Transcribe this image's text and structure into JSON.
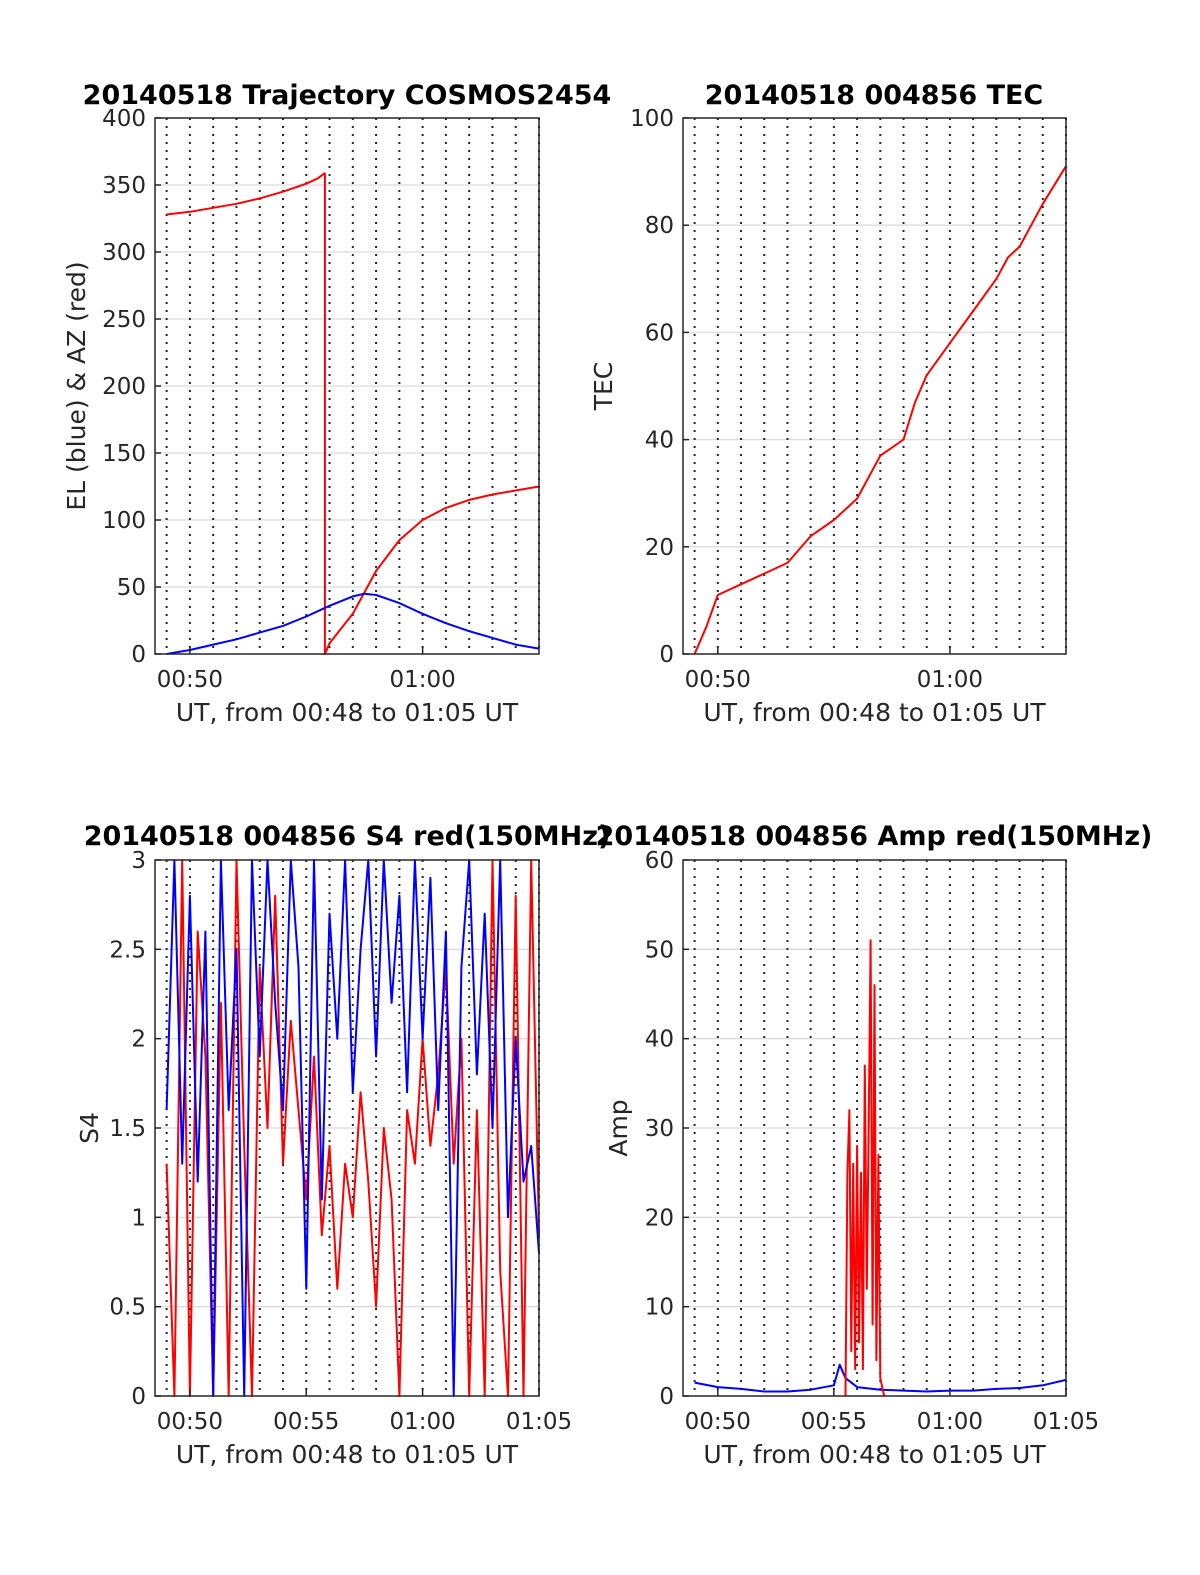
{
  "colors": {
    "red": "#ff0000",
    "blue": "#0000ff"
  },
  "chart_data": [
    {
      "id": "trajectory",
      "type": "line",
      "title": "20140518 Trajectory COSMOS2454",
      "xlabel": "UT, from 00:48 to 01:05 UT",
      "ylabel": "EL (blue) & AZ (red)",
      "xlim": [
        "00:48:30",
        "01:05:00"
      ],
      "ylim": [
        0,
        400
      ],
      "yticks": [
        0,
        50,
        100,
        150,
        200,
        250,
        300,
        350,
        400
      ],
      "xticks": [
        "00:50",
        "01:00"
      ],
      "grid": "on (dotted vertical every minute)",
      "series": [
        {
          "key": "AZ",
          "color": "red",
          "segments": [
            {
              "x": [
                "00:49:00",
                "00:50:00",
                "00:51:00",
                "00:52:00",
                "00:53:00",
                "00:54:00",
                "00:55:00",
                "00:55:30",
                "00:55:48"
              ],
              "y": [
                328,
                330,
                333,
                336,
                340,
                345,
                351,
                355,
                359
              ]
            },
            {
              "x": [
                "00:55:48",
                "00:55:48",
                "00:56:00",
                "00:57:00",
                "00:58:00",
                "00:59:00",
                "01:00:00",
                "01:01:00",
                "01:02:00",
                "01:03:00",
                "01:04:00",
                "01:05:00"
              ],
              "y": [
                359,
                0,
                8,
                30,
                62,
                85,
                100,
                109,
                115,
                119,
                122,
                125
              ]
            }
          ]
        },
        {
          "key": "EL",
          "color": "blue",
          "segments": [
            {
              "x": [
                "00:49:00",
                "00:50:00",
                "00:51:00",
                "00:52:00",
                "00:53:00",
                "00:54:00",
                "00:55:00",
                "00:56:00",
                "00:57:00",
                "00:57:30",
                "00:58:00",
                "00:59:00",
                "01:00:00",
                "01:01:00",
                "01:02:00",
                "01:03:00",
                "01:04:00",
                "01:05:00"
              ],
              "y": [
                0,
                3,
                7,
                11,
                16,
                21,
                28,
                36,
                43,
                45,
                44,
                38,
                30,
                23,
                17,
                12,
                7,
                4
              ]
            }
          ]
        }
      ]
    },
    {
      "id": "tec",
      "type": "line",
      "title": "20140518 004856 TEC",
      "xlabel": "UT, from 00:48 to 01:05 UT",
      "ylabel": "TEC",
      "xlim": [
        "00:48:30",
        "01:05:00"
      ],
      "ylim": [
        0,
        100
      ],
      "yticks": [
        0,
        20,
        40,
        60,
        80,
        100
      ],
      "xticks": [
        "00:50",
        "01:00"
      ],
      "grid": "on",
      "series": [
        {
          "key": "TEC",
          "color": "red",
          "segments": [
            {
              "x": [
                "00:49:00",
                "00:49:30",
                "00:50:00",
                "00:51:00",
                "00:52:00",
                "00:53:00",
                "00:54:00",
                "00:55:00",
                "00:56:00",
                "00:57:00",
                "00:58:00",
                "00:58:30",
                "00:59:00",
                "01:00:00",
                "01:01:00",
                "01:02:00",
                "01:02:30",
                "01:03:00",
                "01:04:00",
                "01:05:00"
              ],
              "y": [
                0,
                5,
                11,
                13,
                15,
                17,
                22,
                25,
                29,
                37,
                40,
                47,
                52,
                58,
                64,
                70,
                74,
                76,
                84,
                91
              ]
            }
          ]
        }
      ]
    },
    {
      "id": "s4",
      "type": "line",
      "title": "20140518 004856 S4 red(150MHz)",
      "xlabel": "UT, from 00:48 to 01:05 UT",
      "ylabel": "S4",
      "xlim": [
        "00:48:30",
        "01:05:00"
      ],
      "ylim": [
        0,
        3
      ],
      "yticks": [
        0,
        0.5,
        1,
        1.5,
        2,
        2.5,
        3
      ],
      "xticks": [
        "00:50",
        "00:55",
        "01:00",
        "01:05"
      ],
      "grid": "on",
      "series": [
        {
          "key": "S4-red",
          "color": "red",
          "segments": [
            {
              "x": [
                "00:49:00",
                "00:49:20",
                "00:49:40",
                "00:50:00",
                "00:50:20",
                "00:50:40",
                "00:51:00",
                "00:51:20",
                "00:51:40",
                "00:52:00",
                "00:52:20",
                "00:52:40",
                "00:53:00",
                "00:53:20",
                "00:53:40",
                "00:54:00",
                "00:54:20",
                "00:54:40",
                "00:55:00",
                "00:55:20",
                "00:55:40",
                "00:56:00",
                "00:56:20",
                "00:56:40",
                "00:57:00",
                "00:57:20",
                "00:57:40",
                "00:58:00",
                "00:58:20",
                "00:58:40",
                "00:59:00",
                "00:59:20",
                "00:59:40",
                "01:00:00",
                "01:00:20",
                "01:00:40",
                "01:01:00",
                "01:01:20",
                "01:01:40",
                "01:02:00",
                "01:02:20",
                "01:02:40",
                "01:03:00",
                "01:03:20",
                "01:03:40",
                "01:04:00",
                "01:04:20",
                "01:04:40",
                "01:05:00"
              ],
              "y": [
                1.3,
                0,
                3,
                0,
                2.6,
                1.9,
                0,
                2.2,
                0,
                3,
                1.4,
                0,
                2.4,
                1.5,
                2.8,
                1.3,
                2.1,
                1.6,
                1.1,
                1.9,
                0.9,
                1.4,
                0.6,
                1.3,
                1.0,
                1.7,
                1.2,
                0.5,
                1.5,
                1.1,
                0,
                1.6,
                1.3,
                2.0,
                1.4,
                1.8,
                2.4,
                1.3,
                2.0,
                0,
                1.6,
                0,
                3,
                0.7,
                0,
                2.8,
                0,
                3,
                0.9
              ]
            }
          ]
        },
        {
          "key": "S4-blue",
          "color": "blue",
          "segments": [
            {
              "x": [
                "00:49:00",
                "00:49:20",
                "00:49:40",
                "00:50:00",
                "00:50:20",
                "00:50:40",
                "00:51:00",
                "00:51:20",
                "00:51:40",
                "00:52:00",
                "00:52:20",
                "00:52:40",
                "00:53:00",
                "00:53:20",
                "00:53:40",
                "00:54:00",
                "00:54:20",
                "00:54:40",
                "00:55:00",
                "00:55:20",
                "00:55:40",
                "00:56:00",
                "00:56:20",
                "00:56:40",
                "00:57:00",
                "00:57:20",
                "00:57:40",
                "00:58:00",
                "00:58:20",
                "00:58:40",
                "00:59:00",
                "00:59:20",
                "00:59:40",
                "01:00:00",
                "01:00:20",
                "01:00:40",
                "01:01:00",
                "01:01:20",
                "01:01:40",
                "01:02:00",
                "01:02:20",
                "01:02:40",
                "01:03:00",
                "01:03:20",
                "01:03:40",
                "01:04:00",
                "01:04:20",
                "01:04:40",
                "01:05:00"
              ],
              "y": [
                1.6,
                3,
                1.3,
                2.8,
                1.2,
                2.6,
                0,
                3,
                1.6,
                2.5,
                0,
                3,
                1.9,
                3,
                2.2,
                1.6,
                3,
                2.4,
                0.6,
                3,
                1.1,
                2.7,
                2.0,
                3,
                1.7,
                2.5,
                3,
                1.9,
                3,
                2.2,
                2.8,
                1.7,
                3,
                2.0,
                2.9,
                1.6,
                2.6,
                0,
                2.4,
                3,
                1.8,
                2.7,
                1.5,
                3,
                1.0,
                2.0,
                1.2,
                1.4,
                0.8
              ]
            }
          ]
        }
      ]
    },
    {
      "id": "amp",
      "type": "line",
      "title": "20140518 004856 Amp red(150MHz)",
      "xlabel": "UT, from 00:48 to 01:05 UT",
      "ylabel": "Amp",
      "xlim": [
        "00:48:30",
        "01:05:00"
      ],
      "ylim": [
        0,
        60
      ],
      "yticks": [
        0,
        10,
        20,
        30,
        40,
        50,
        60
      ],
      "xticks": [
        "00:50",
        "00:55",
        "01:00",
        "01:05"
      ],
      "grid": "on",
      "series": [
        {
          "key": "Amp-blue",
          "color": "blue",
          "segments": [
            {
              "x": [
                "00:49:00",
                "00:50:00",
                "00:51:00",
                "00:52:00",
                "00:53:00",
                "00:54:00",
                "00:55:00",
                "00:55:15",
                "00:55:30",
                "00:56:00",
                "00:57:00",
                "00:58:00",
                "00:59:00",
                "01:00:00",
                "01:01:00",
                "01:02:00",
                "01:03:00",
                "01:04:00",
                "01:05:00"
              ],
              "y": [
                1.5,
                1.0,
                0.8,
                0.5,
                0.5,
                0.7,
                1.2,
                3.5,
                2.0,
                1.0,
                0.7,
                0.6,
                0.5,
                0.6,
                0.6,
                0.8,
                0.9,
                1.2,
                1.8
              ]
            }
          ]
        },
        {
          "key": "Amp-red",
          "color": "red",
          "segments": [
            {
              "x": [
                "00:55:30",
                "00:55:35",
                "00:55:40",
                "00:55:45",
                "00:55:50",
                "00:55:55",
                "00:56:00",
                "00:56:05",
                "00:56:10",
                "00:56:15",
                "00:56:20",
                "00:56:25",
                "00:56:30",
                "00:56:35",
                "00:56:40",
                "00:56:45",
                "00:56:50",
                "00:56:55",
                "00:57:00",
                "00:57:05",
                "00:57:10"
              ],
              "y": [
                0,
                25,
                32,
                5,
                26,
                3,
                28,
                6,
                25,
                3,
                37,
                12,
                30,
                51,
                8,
                46,
                4,
                27,
                2,
                1,
                0
              ]
            }
          ]
        }
      ]
    }
  ]
}
